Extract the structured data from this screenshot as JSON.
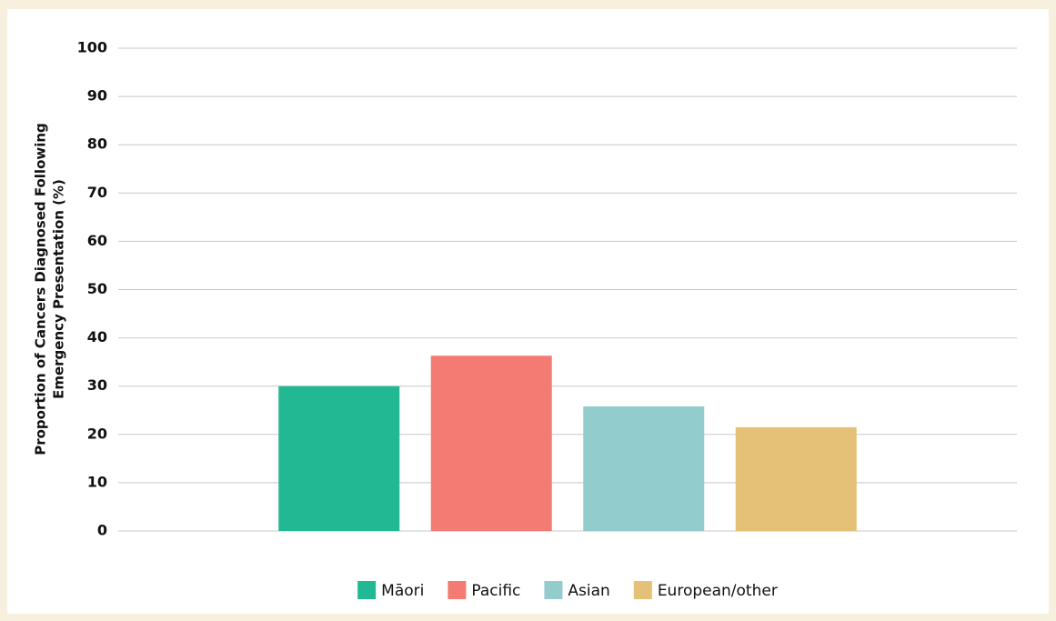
{
  "chart_data": {
    "type": "bar",
    "ylabel": [
      "Proportion of Cancers Diagnosed Following",
      "Emergency Presentation (%)"
    ],
    "categories": [
      null
    ],
    "series": [
      {
        "name": "Māori",
        "color": "#22b894",
        "values": [
          30
        ]
      },
      {
        "name": "Pacific",
        "color": "#f37b74",
        "values": [
          36.3
        ]
      },
      {
        "name": "Asian",
        "color": "#93cccc",
        "values": [
          25.8
        ]
      },
      {
        "name": "European/other",
        "color": "#e5c177",
        "values": [
          21.5
        ]
      }
    ],
    "ylim": [
      0,
      100
    ],
    "yticks": [
      0,
      10,
      20,
      30,
      40,
      50,
      60,
      70,
      80,
      90,
      100
    ],
    "grid": true,
    "legend": "bottom"
  }
}
